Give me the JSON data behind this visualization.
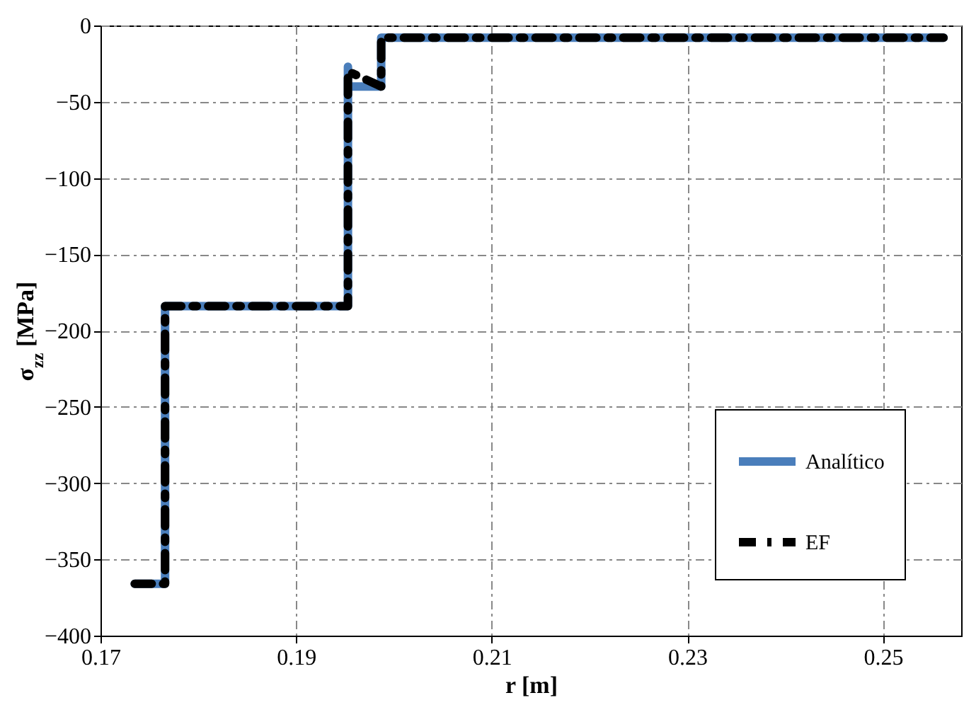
{
  "chart_data": {
    "type": "line",
    "xlabel": "r [m]",
    "ylabel": "σ$_{zz}$ [MPa]",
    "xlim": [
      0.17,
      0.258
    ],
    "xticks": [
      0.17,
      0.19,
      0.21,
      0.23,
      0.25
    ],
    "ylim": [
      -400,
      0
    ],
    "yticks": [
      -400,
      -350,
      -300,
      -250,
      -200,
      -150,
      -100,
      -50,
      0
    ],
    "grid": true,
    "legend": "bottom right",
    "series": [
      {
        "name": "Analítico",
        "color": "#4a7ebb",
        "line_style": "solid",
        "x": [
          0.1735,
          0.1766,
          0.1766,
          0.1953,
          0.1953,
          0.1953,
          0.1987,
          0.1987,
          0.2562
        ],
        "values": [
          -366,
          -366,
          -184,
          -184,
          -27,
          -40,
          -40,
          -8,
          -8
        ]
      },
      {
        "name": "EF",
        "color": "#000000",
        "line_style": "dashed",
        "x": [
          0.1735,
          0.1766,
          0.1766,
          0.1953,
          0.1953,
          0.1987,
          0.1987,
          0.1987,
          0.2562
        ],
        "values": [
          -366,
          -366,
          -184,
          -184,
          -30,
          -40,
          -40,
          -8,
          -8
        ]
      }
    ]
  }
}
